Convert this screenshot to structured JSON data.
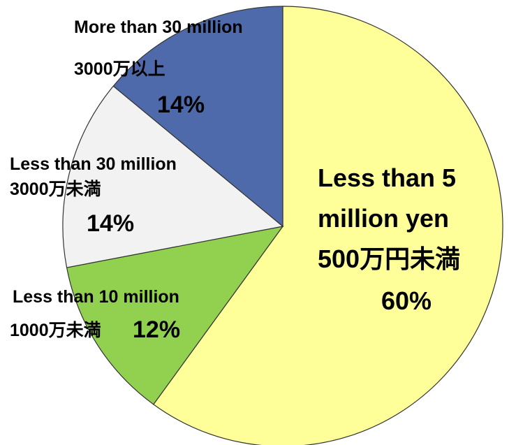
{
  "chart_data": {
    "type": "pie",
    "unit": "%",
    "slices": [
      {
        "name_en": "Less than 5 million yen",
        "name_ja": "500万円未満",
        "value": 60,
        "pct_label": "60%",
        "color": "#FFFF99"
      },
      {
        "name_en": "Less than 10 million",
        "name_ja": "1000万未満",
        "value": 12,
        "pct_label": "12%",
        "color": "#92D050"
      },
      {
        "name_en": "Less than 30 million",
        "name_ja": "3000万未満",
        "value": 14,
        "pct_label": "14%",
        "color": "#F2F2F2"
      },
      {
        "name_en": "More than 30 million",
        "name_ja": "3000万以上",
        "value": 14,
        "pct_label": "14%",
        "color": "#4F6AAA"
      }
    ],
    "start": "12 o'clock",
    "direction": "clockwise",
    "legend": "none",
    "label_text": {
      "big_line1": "Less than 5",
      "big_line2": "million yen"
    }
  }
}
